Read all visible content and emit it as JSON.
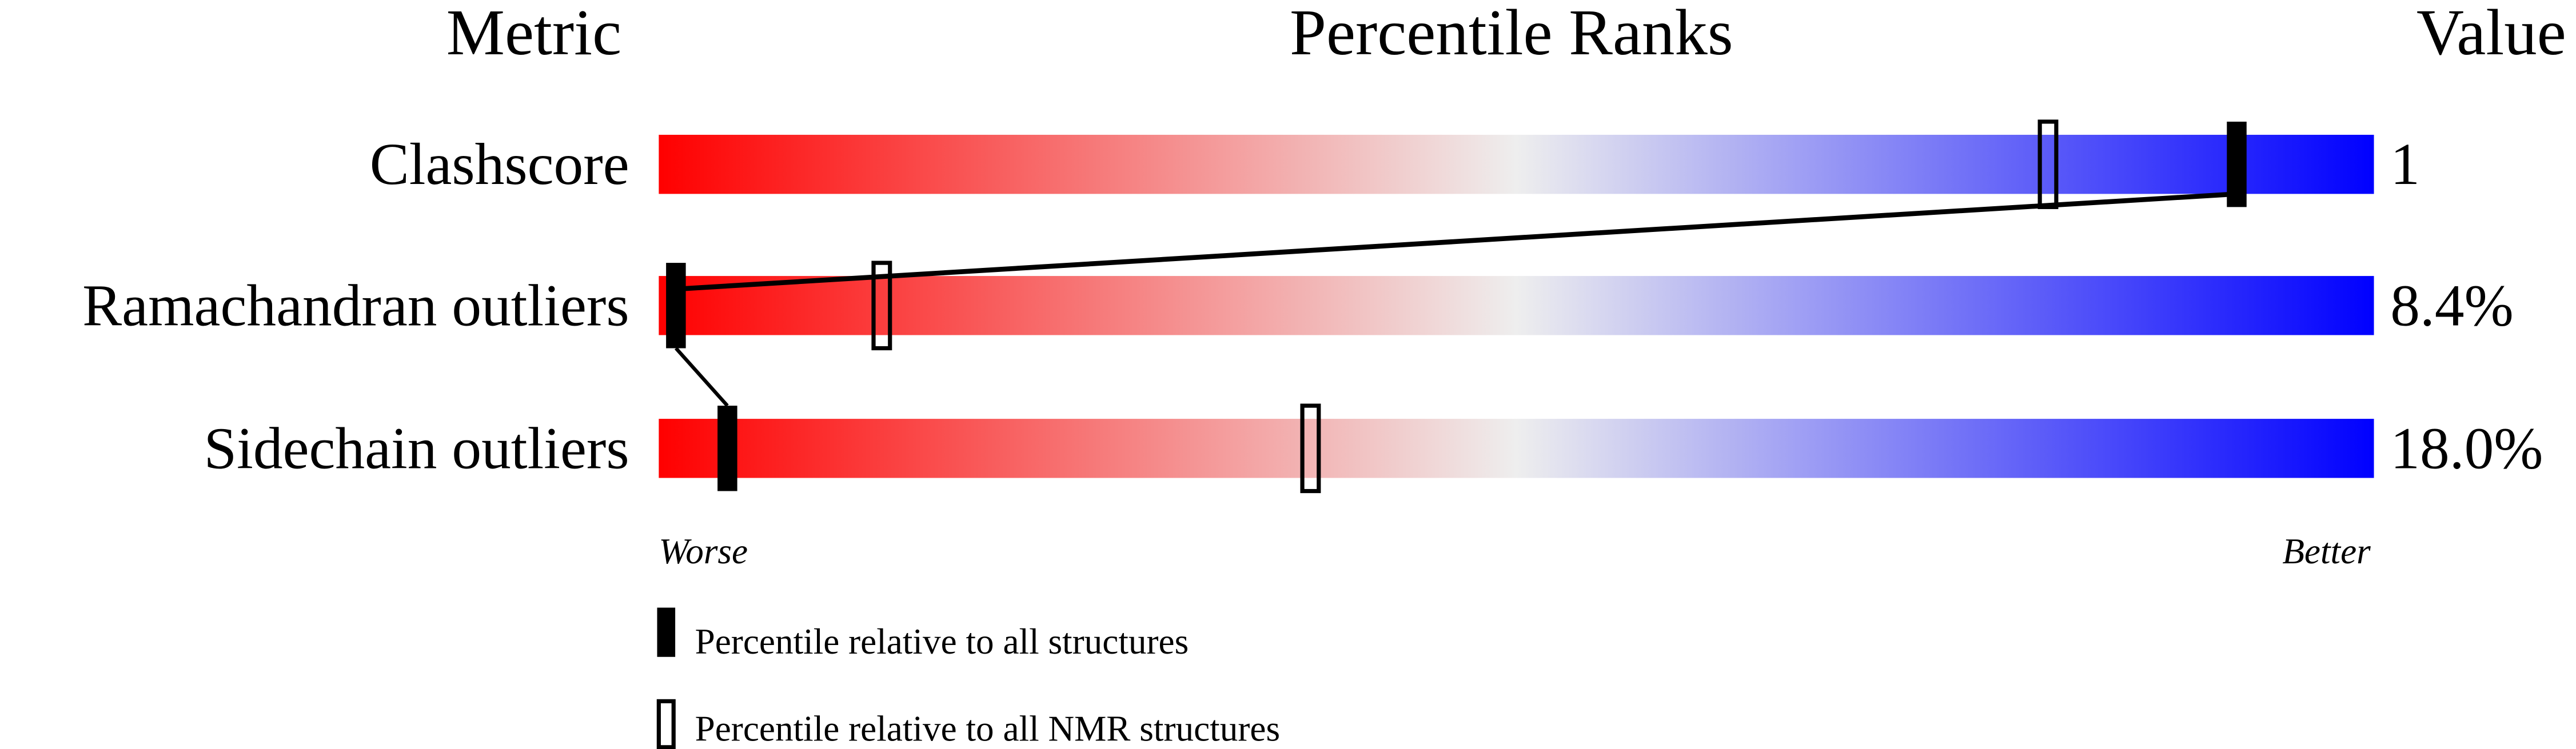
{
  "chart_data": {
    "type": "bar",
    "title": "Percentile Ranks",
    "headers": {
      "metric": "Metric",
      "percentile": "Percentile Ranks",
      "value": "Value"
    },
    "xlim": [
      0,
      100
    ],
    "axis_labels": {
      "left": "Worse",
      "right": "Better"
    },
    "gradient_colors": {
      "worse": "#ff0000",
      "middle": "#eeeeee",
      "better": "#0000ff"
    },
    "metrics": [
      {
        "name": "Clashscore",
        "value": "1",
        "percentile_all": 92,
        "percentile_nmr": 81
      },
      {
        "name": "Ramachandran outliers",
        "value": "8.4%",
        "percentile_all": 1,
        "percentile_nmr": 13
      },
      {
        "name": "Sidechain outliers",
        "value": "18.0%",
        "percentile_all": 4,
        "percentile_nmr": 38
      }
    ],
    "legend": [
      {
        "marker": "filled",
        "label": "Percentile relative to all structures"
      },
      {
        "marker": "open",
        "label": "Percentile relative to all NMR structures"
      }
    ]
  }
}
